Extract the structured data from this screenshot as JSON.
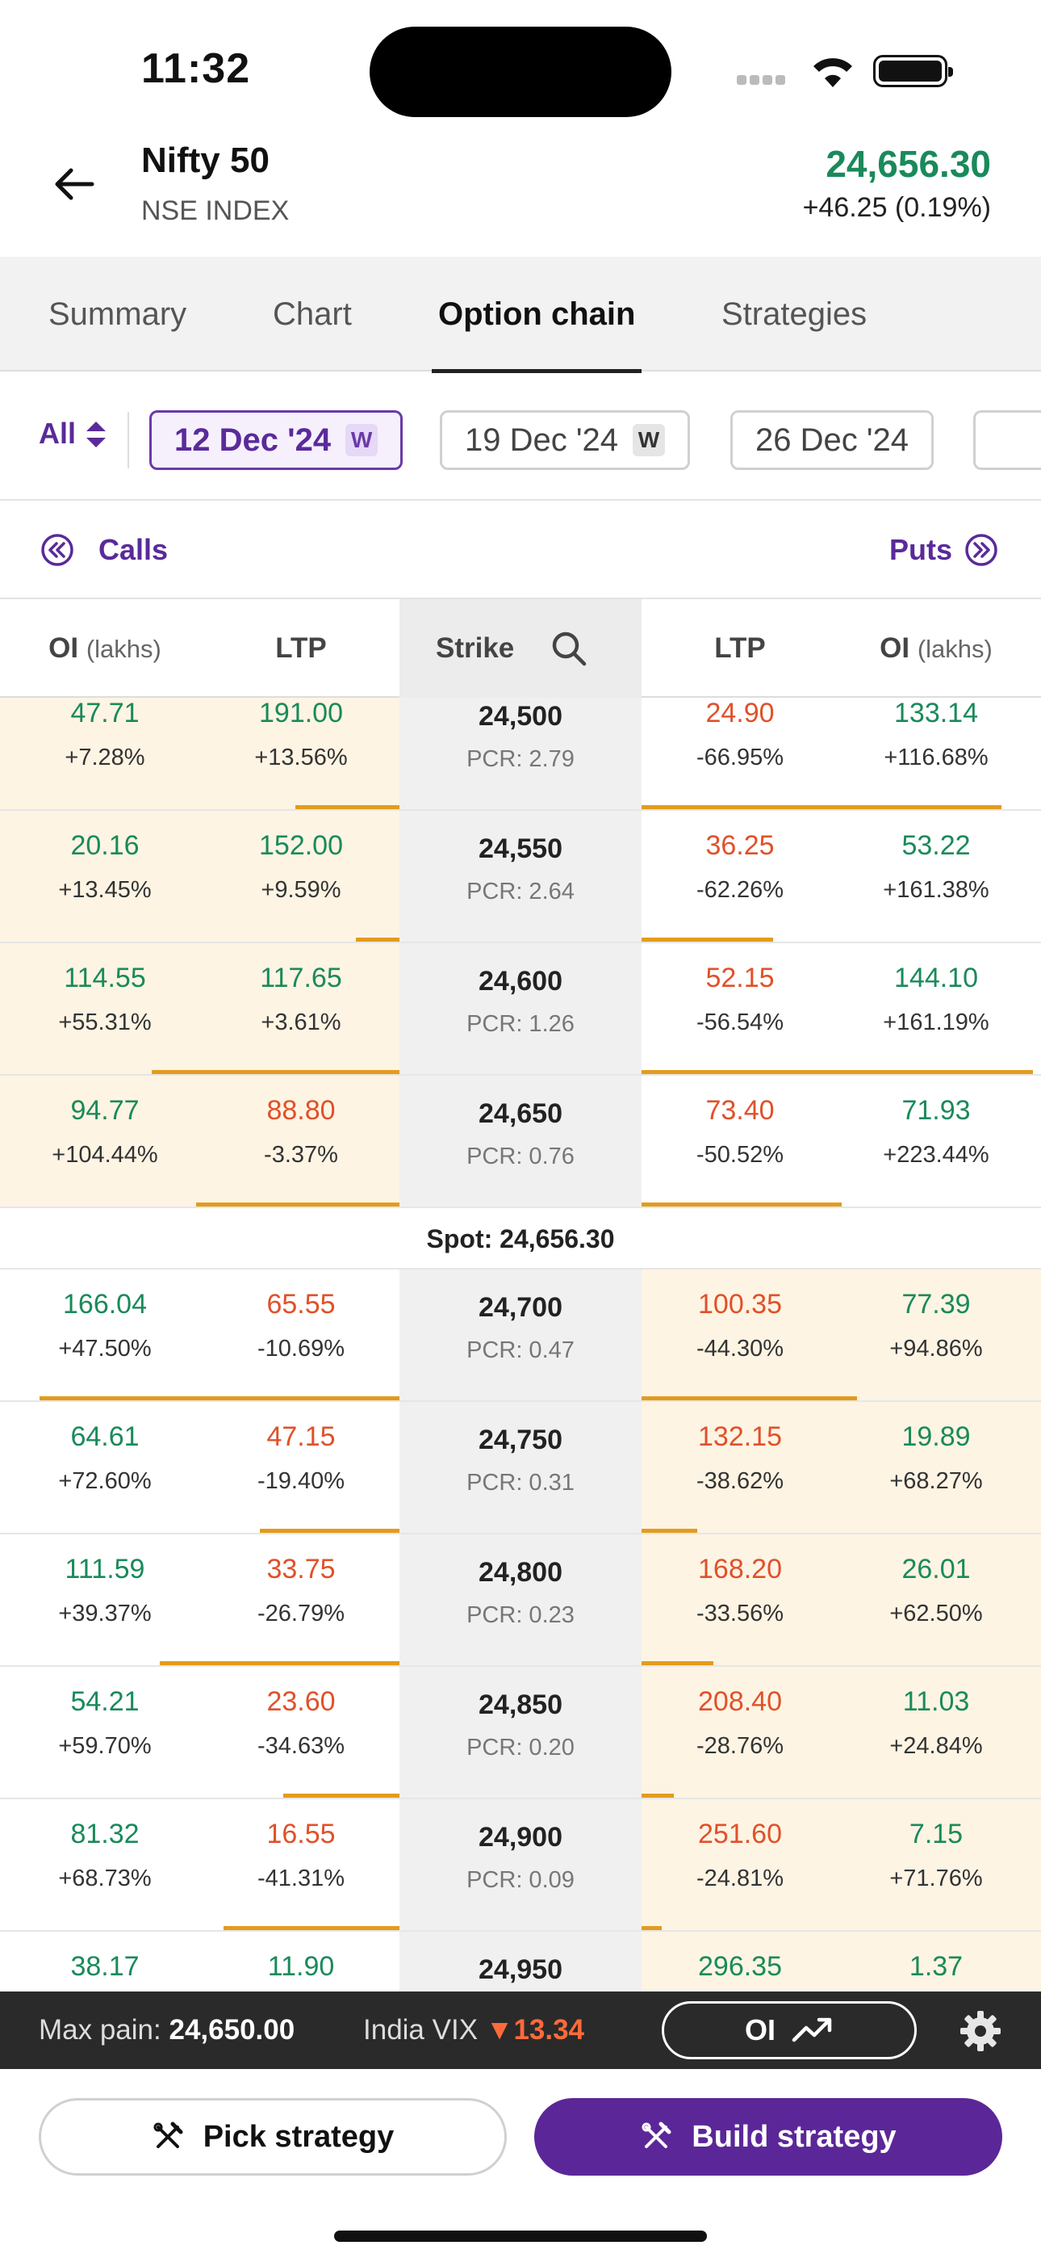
{
  "status": {
    "time": "11:32"
  },
  "header": {
    "title": "Nifty 50",
    "subtitle": "NSE INDEX",
    "price": "24,656.30",
    "change": "+46.25 (0.19%)"
  },
  "tabs": [
    {
      "label": "Summary"
    },
    {
      "label": "Chart"
    },
    {
      "label": "Option chain",
      "active": true
    },
    {
      "label": "Strategies"
    }
  ],
  "expiry": {
    "filter": "All",
    "chips": [
      {
        "label": "12 Dec '24",
        "badge": "W",
        "selected": true
      },
      {
        "label": "19 Dec '24",
        "badge": "W"
      },
      {
        "label": "26 Dec '24"
      }
    ]
  },
  "calls_label": "Calls",
  "puts_label": "Puts",
  "columns": {
    "oi": "OI",
    "oi_unit": "(lakhs)",
    "ltp": "LTP",
    "strike": "Strike"
  },
  "spot_label": "Spot: 24,656.30",
  "rows": [
    {
      "strike": "24,500",
      "pcr": "PCR: 2.79",
      "call_oi": "47.71",
      "call_oi_chg": "+7.28%",
      "call_ltp": "191.00",
      "call_ltp_chg": "+13.56%",
      "put_ltp": "24.90",
      "put_ltp_chg": "-66.95%",
      "put_oi": "133.14",
      "put_oi_chg": "+116.68%",
      "call_bar": 0.26,
      "put_bar": 0.9
    },
    {
      "strike": "24,550",
      "pcr": "PCR: 2.64",
      "call_oi": "20.16",
      "call_oi_chg": "+13.45%",
      "call_ltp": "152.00",
      "call_ltp_chg": "+9.59%",
      "put_ltp": "36.25",
      "put_ltp_chg": "-62.26%",
      "put_oi": "53.22",
      "put_oi_chg": "+161.38%",
      "call_bar": 0.11,
      "put_bar": 0.33
    },
    {
      "strike": "24,600",
      "pcr": "PCR: 1.26",
      "call_oi": "114.55",
      "call_oi_chg": "+55.31%",
      "call_ltp": "117.65",
      "call_ltp_chg": "+3.61%",
      "put_ltp": "52.15",
      "put_ltp_chg": "-56.54%",
      "put_oi": "144.10",
      "put_oi_chg": "+161.19%",
      "call_bar": 0.62,
      "put_bar": 0.98
    },
    {
      "strike": "24,650",
      "pcr": "PCR: 0.76",
      "call_oi": "94.77",
      "call_oi_chg": "+104.44%",
      "call_ltp": "88.80",
      "call_ltp_chg": "-3.37%",
      "put_ltp": "73.40",
      "put_ltp_chg": "-50.52%",
      "put_oi": "71.93",
      "put_oi_chg": "+223.44%",
      "call_bar": 0.51,
      "put_bar": 0.5
    },
    {
      "strike": "24,700",
      "pcr": "PCR: 0.47",
      "call_oi": "166.04",
      "call_oi_chg": "+47.50%",
      "call_ltp": "65.55",
      "call_ltp_chg": "-10.69%",
      "put_ltp": "100.35",
      "put_ltp_chg": "-44.30%",
      "put_oi": "77.39",
      "put_oi_chg": "+94.86%",
      "call_bar": 0.9,
      "put_bar": 0.54
    },
    {
      "strike": "24,750",
      "pcr": "PCR: 0.31",
      "call_oi": "64.61",
      "call_oi_chg": "+72.60%",
      "call_ltp": "47.15",
      "call_ltp_chg": "-19.40%",
      "put_ltp": "132.15",
      "put_ltp_chg": "-38.62%",
      "put_oi": "19.89",
      "put_oi_chg": "+68.27%",
      "call_bar": 0.35,
      "put_bar": 0.14
    },
    {
      "strike": "24,800",
      "pcr": "PCR: 0.23",
      "call_oi": "111.59",
      "call_oi_chg": "+39.37%",
      "call_ltp": "33.75",
      "call_ltp_chg": "-26.79%",
      "put_ltp": "168.20",
      "put_ltp_chg": "-33.56%",
      "put_oi": "26.01",
      "put_oi_chg": "+62.50%",
      "call_bar": 0.6,
      "put_bar": 0.18
    },
    {
      "strike": "24,850",
      "pcr": "PCR: 0.20",
      "call_oi": "54.21",
      "call_oi_chg": "+59.70%",
      "call_ltp": "23.60",
      "call_ltp_chg": "-34.63%",
      "put_ltp": "208.40",
      "put_ltp_chg": "-28.76%",
      "put_oi": "11.03",
      "put_oi_chg": "+24.84%",
      "call_bar": 0.29,
      "put_bar": 0.08
    },
    {
      "strike": "24,900",
      "pcr": "PCR: 0.09",
      "call_oi": "81.32",
      "call_oi_chg": "+68.73%",
      "call_ltp": "16.55",
      "call_ltp_chg": "-41.31%",
      "put_ltp": "251.60",
      "put_ltp_chg": "-24.81%",
      "put_oi": "7.15",
      "put_oi_chg": "+71.76%",
      "call_bar": 0.44,
      "put_bar": 0.05
    },
    {
      "strike": "24,950",
      "pcr": "",
      "call_oi": "38.17",
      "call_oi_chg": "",
      "call_ltp": "11.90",
      "call_ltp_chg": "",
      "put_ltp": "296.35",
      "put_ltp_chg": "",
      "put_oi": "1.37",
      "put_oi_chg": "",
      "call_bar": 0,
      "put_bar": 0
    }
  ],
  "footer": {
    "max_pain_label": "Max pain:",
    "max_pain_value": "24,650.00",
    "vix_label": "India VIX",
    "vix_value": "13.34",
    "oi_button": "OI",
    "pick_strategy": "Pick strategy",
    "build_strategy": "Build strategy"
  }
}
